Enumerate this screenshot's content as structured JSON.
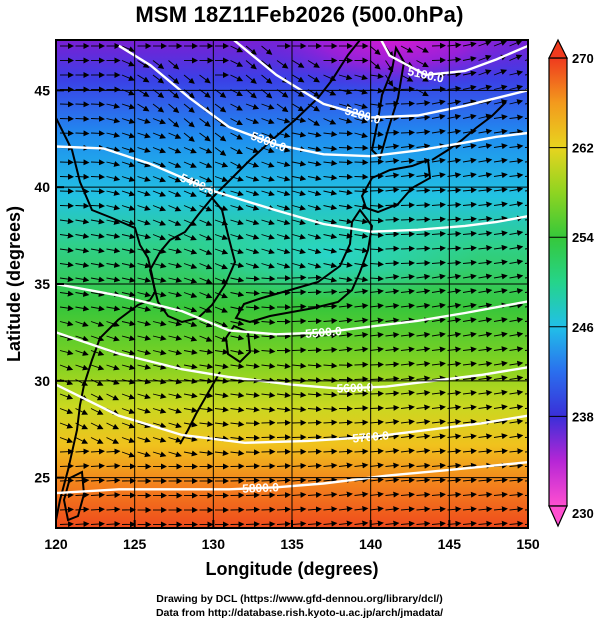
{
  "title": "MSM 18Z11Feb2026 (500.0hPa)",
  "xlabel": "Longitude (degrees)",
  "ylabel": "Latitude  (degrees)",
  "xticks": [
    120,
    125,
    130,
    135,
    140,
    145,
    150
  ],
  "yticks": [
    25,
    30,
    35,
    40,
    45
  ],
  "xlim": [
    120,
    150
  ],
  "ylim": [
    22.4,
    47.6
  ],
  "colorbar": {
    "ticks": [
      230,
      238,
      246,
      254,
      262,
      270
    ],
    "range": [
      230,
      270
    ]
  },
  "contour_labels": [
    "5100.0",
    "5200.0",
    "5300.0",
    "5400.0",
    "5500.0",
    "5600.0",
    "5700.0",
    "5800.0"
  ],
  "credits": {
    "line1": "Drawing by DCL (https://www.gfd-dennou.org/library/dcl/)",
    "line2": "Data from http://database.rish.kyoto-u.ac.jp/arch/jmadata/"
  },
  "colors": {
    "frame": "#000000",
    "contour": "#ffffff",
    "wind_arrow": "#000000",
    "coast": "#000000"
  },
  "chart_data": {
    "type": "heatmap",
    "title": "MSM 18Z11Feb2026 (500.0hPa)",
    "xlabel": "Longitude (degrees)",
    "ylabel": "Latitude  (degrees)",
    "xlim": [
      120,
      150
    ],
    "ylim": [
      22.4,
      47.6
    ],
    "color_range": [
      230,
      270
    ],
    "colorbar_ticks": [
      230,
      238,
      246,
      254,
      262,
      270
    ],
    "contours": [
      {
        "label": "5100.0",
        "points": [
          [
            140,
            48.6
          ],
          [
            141.2,
            46.8
          ],
          [
            143.5,
            45.8
          ],
          [
            146,
            46.0
          ],
          [
            148,
            46.6
          ],
          [
            150,
            47.3
          ]
        ]
      },
      {
        "label": "5200.0",
        "points": [
          [
            131,
            47.8
          ],
          [
            134,
            45.8
          ],
          [
            137,
            44.3
          ],
          [
            140,
            43.6
          ],
          [
            143,
            43.7
          ],
          [
            146,
            44.2
          ],
          [
            148,
            44.6
          ],
          [
            150,
            45.0
          ]
        ]
      },
      {
        "label": "5300.0",
        "points": [
          [
            124,
            47.3
          ],
          [
            126,
            46.3
          ],
          [
            128.5,
            44.6
          ],
          [
            131,
            43.1
          ],
          [
            134,
            42.2
          ],
          [
            137,
            41.7
          ],
          [
            140,
            41.6
          ],
          [
            143,
            41.9
          ],
          [
            146,
            42.3
          ],
          [
            148,
            42.6
          ],
          [
            150,
            42.8
          ]
        ]
      },
      {
        "label": "5400.0",
        "points": [
          [
            120,
            42.1
          ],
          [
            123,
            42.0
          ],
          [
            126,
            41.2
          ],
          [
            130,
            39.8
          ],
          [
            134,
            38.8
          ],
          [
            137,
            38.1
          ],
          [
            140,
            37.7
          ],
          [
            143,
            37.8
          ],
          [
            146,
            38.0
          ],
          [
            148,
            38.2
          ],
          [
            150,
            38.5
          ]
        ]
      },
      {
        "label": "5500.0",
        "points": [
          [
            120,
            35.0
          ],
          [
            124,
            34.4
          ],
          [
            128,
            33.6
          ],
          [
            131,
            32.6
          ],
          [
            134,
            32.4
          ],
          [
            137,
            32.5
          ],
          [
            140,
            32.8
          ],
          [
            143,
            33.1
          ],
          [
            146,
            33.5
          ],
          [
            148,
            33.8
          ],
          [
            150,
            34.1
          ]
        ]
      },
      {
        "label": "5600.0",
        "points": [
          [
            120,
            32.5
          ],
          [
            124,
            31.4
          ],
          [
            128,
            30.6
          ],
          [
            131,
            30.2
          ],
          [
            135,
            29.8
          ],
          [
            138,
            29.6
          ],
          [
            141,
            29.7
          ],
          [
            144,
            30.0
          ],
          [
            147,
            30.3
          ],
          [
            150,
            30.7
          ]
        ]
      },
      {
        "label": "5700.0",
        "points": [
          [
            120,
            29.8
          ],
          [
            124,
            28.2
          ],
          [
            128,
            27.2
          ],
          [
            132,
            26.8
          ],
          [
            136,
            26.9
          ],
          [
            140,
            27.1
          ],
          [
            144,
            27.5
          ],
          [
            147,
            27.8
          ],
          [
            150,
            28.2
          ]
        ]
      },
      {
        "label": "5800.0",
        "points": [
          [
            120,
            24.2
          ],
          [
            124,
            24.4
          ],
          [
            128,
            24.4
          ],
          [
            131,
            24.4
          ],
          [
            134,
            24.5
          ],
          [
            137,
            24.7
          ],
          [
            141,
            25.1
          ],
          [
            145,
            25.4
          ],
          [
            150,
            25.8
          ]
        ]
      }
    ]
  }
}
